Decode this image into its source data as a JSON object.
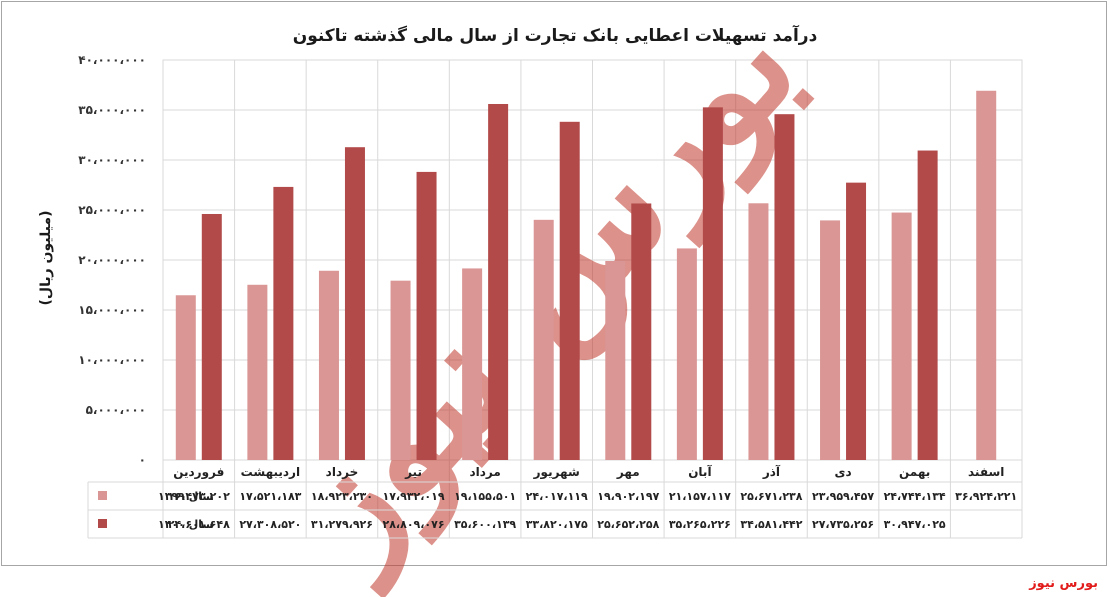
{
  "chart_data": {
    "type": "bar",
    "title": "درآمد تسهیلات اعطایی بانک تجارت از سال مالی گذشته تاکنون",
    "ylabel": "(میلیون ریال)",
    "ylim": [
      0,
      40000000
    ],
    "yticks": [
      0,
      5000000,
      10000000,
      15000000,
      20000000,
      25000000,
      30000000,
      35000000,
      40000000
    ],
    "ytick_labels": [
      "۰",
      "۵،۰۰۰،۰۰۰",
      "۱۰،۰۰۰،۰۰۰",
      "۱۵،۰۰۰،۰۰۰",
      "۲۰،۰۰۰،۰۰۰",
      "۲۵،۰۰۰،۰۰۰",
      "۳۰،۰۰۰،۰۰۰",
      "۳۵،۰۰۰،۰۰۰",
      "۴۰،۰۰۰،۰۰۰"
    ],
    "categories": [
      "فروردین",
      "اردیبهشت",
      "خرداد",
      "تیر",
      "مرداد",
      "شهریور",
      "مهر",
      "آبان",
      "آذر",
      "دی",
      "بهمن",
      "اسفند"
    ],
    "grid": true,
    "legend": "table-left",
    "series": [
      {
        "name": "سال ۱۳۹۹",
        "color": "#d99694",
        "values": [
          16473202,
          17521183,
          18923230,
          17932019,
          19155501,
          24017119,
          19902197,
          21157117,
          25671238,
          23959457,
          24744134,
          36924221
        ],
        "labels": [
          "۱۶،۴۷۳،۲۰۲",
          "۱۷،۵۲۱،۱۸۳",
          "۱۸،۹۲۳،۲۳۰",
          "۱۷،۹۳۲،۰۱۹",
          "۱۹،۱۵۵،۵۰۱",
          "۲۴،۰۱۷،۱۱۹",
          "۱۹،۹۰۲،۱۹۷",
          "۲۱،۱۵۷،۱۱۷",
          "۲۵،۶۷۱،۲۳۸",
          "۲۳،۹۵۹،۴۵۷",
          "۲۴،۷۴۴،۱۳۴",
          "۳۶،۹۲۴،۲۲۱"
        ]
      },
      {
        "name": "سال ۱۴۰۰",
        "color": "#b24a4a",
        "values": [
          24601648,
          27308520,
          31279926,
          28809076,
          35600139,
          33820175,
          25652258,
          35265226,
          34581442,
          27735256,
          30947025,
          null
        ],
        "labels": [
          "۲۴،۶۰۱،۶۴۸",
          "۲۷،۳۰۸،۵۲۰",
          "۳۱،۲۷۹،۹۲۶",
          "۲۸،۸۰۹،۰۷۶",
          "۳۵،۶۰۰،۱۳۹",
          "۳۳،۸۲۰،۱۷۵",
          "۲۵،۶۵۲،۲۵۸",
          "۳۵،۲۶۵،۲۲۶",
          "۳۴،۵۸۱،۴۴۲",
          "۲۷،۷۳۵،۲۵۶",
          "۳۰،۹۴۷،۰۲۵",
          ""
        ]
      }
    ]
  },
  "watermark_text": "بورس نیوز",
  "brand": "بورس نیوز"
}
